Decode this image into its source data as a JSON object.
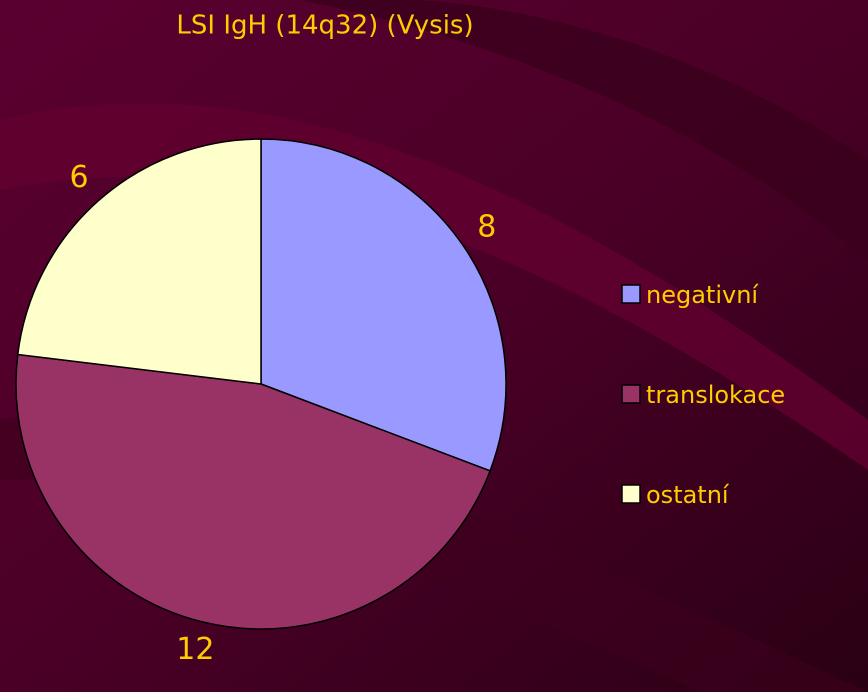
{
  "chart_data": {
    "type": "pie",
    "title": "LSI IgH (14q32)  (Vysis)",
    "categories": [
      "negativní",
      "translokace",
      "ostatní"
    ],
    "values": [
      8,
      12,
      6
    ],
    "colors": [
      "#9999ff",
      "#993366",
      "#ffffcc"
    ],
    "legend": "right"
  }
}
